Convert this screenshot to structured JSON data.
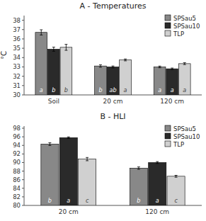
{
  "chart_data": [
    {
      "type": "bar",
      "title": "A - Temperatures",
      "ylabel": "°C",
      "categories": [
        "Soil",
        "20 cm",
        "120 cm"
      ],
      "series": [
        {
          "name": "SPSau5",
          "color": "#888888",
          "values": [
            36.7,
            33.1,
            33.0
          ],
          "errors": [
            0.28,
            0.13,
            0.09
          ],
          "letters": [
            "a",
            "b",
            "a"
          ]
        },
        {
          "name": "SPSau10",
          "color": "#2a2a2a",
          "values": [
            34.9,
            33.0,
            32.8
          ],
          "errors": [
            0.22,
            0.1,
            0.08
          ],
          "letters": [
            "b",
            "ab",
            "a"
          ]
        },
        {
          "name": "TLP",
          "color": "#d0d0d0",
          "values": [
            35.1,
            33.75,
            33.35
          ],
          "errors": [
            0.32,
            0.1,
            0.1
          ],
          "letters": [
            "b",
            "a",
            "a"
          ]
        }
      ],
      "ylim": [
        30,
        38.5
      ],
      "yticks": [
        30,
        31,
        32,
        33,
        34,
        35,
        36,
        37,
        38
      ],
      "grid": false,
      "legend": "upper right"
    },
    {
      "type": "bar",
      "title": "B - HLI",
      "categories": [
        "20 cm",
        "120 cm"
      ],
      "series": [
        {
          "name": "SPSau5",
          "color": "#888888",
          "values": [
            94.3,
            88.7
          ],
          "errors": [
            0.32,
            0.28
          ],
          "letters": [
            "b",
            "b"
          ]
        },
        {
          "name": "SPSau10",
          "color": "#2a2a2a",
          "values": [
            95.8,
            90.0
          ],
          "errors": [
            0.18,
            0.22
          ],
          "letters": [
            "a",
            "a"
          ]
        },
        {
          "name": "TLP",
          "color": "#d0d0d0",
          "values": [
            90.8,
            86.8
          ],
          "errors": [
            0.38,
            0.22
          ],
          "letters": [
            "c",
            "c"
          ]
        }
      ],
      "ylim": [
        80,
        98.5
      ],
      "yticks": [
        80,
        82,
        84,
        86,
        88,
        90,
        92,
        94,
        96,
        98
      ],
      "grid": false,
      "legend": "upper right"
    }
  ]
}
